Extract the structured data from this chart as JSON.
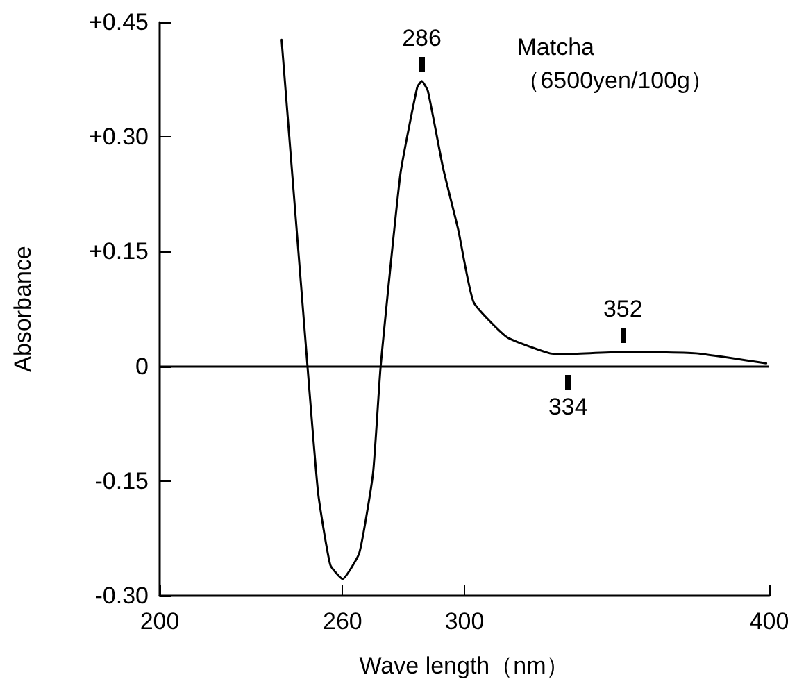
{
  "chart_data": {
    "type": "line",
    "xlabel": "Wave length（nm）",
    "ylabel": "Absorbance",
    "x": [
      240,
      248.5,
      252,
      256,
      260,
      265.5,
      270,
      272.5,
      279,
      284.5,
      286,
      288,
      293,
      298,
      303,
      314,
      328,
      334,
      352,
      376,
      399
    ],
    "series": [
      {
        "color": "#000000",
        "values": [
          0.427,
          0,
          -0.166,
          -0.26,
          -0.278,
          -0.244,
          -0.14,
          0,
          0.252,
          0.365,
          0.373,
          0.36,
          0.259,
          0.178,
          0.084,
          0.038,
          0.017,
          0.016,
          0.019,
          0.017,
          0.004
        ]
      }
    ],
    "xlim": [
      200,
      400
    ],
    "xticks": [
      200,
      260,
      300,
      400
    ],
    "ylim": [
      -0.3,
      0.45
    ],
    "yticks": [
      {
        "value": -0.3,
        "label": "-0.30"
      },
      {
        "value": -0.15,
        "label": "-0.15"
      },
      0,
      {
        "value": 0.15,
        "label": "+0.15"
      },
      {
        "value": 0.3,
        "label": "+0.30"
      },
      {
        "value": 0.45,
        "label": "+0.45"
      }
    ],
    "ref_lines": [
      {
        "axis": "y",
        "value": 0,
        "color": "#000000"
      }
    ],
    "annotations": [
      {
        "text": "286",
        "x": 286,
        "y": 0.373
      },
      {
        "text": "334",
        "x": 334,
        "y": 0
      },
      {
        "text": "352",
        "x": 352,
        "y": 0.019
      },
      "Matcha\n（6500yen/100g）"
    ],
    "grid": false,
    "marker": "none",
    "line_style": "solid"
  }
}
